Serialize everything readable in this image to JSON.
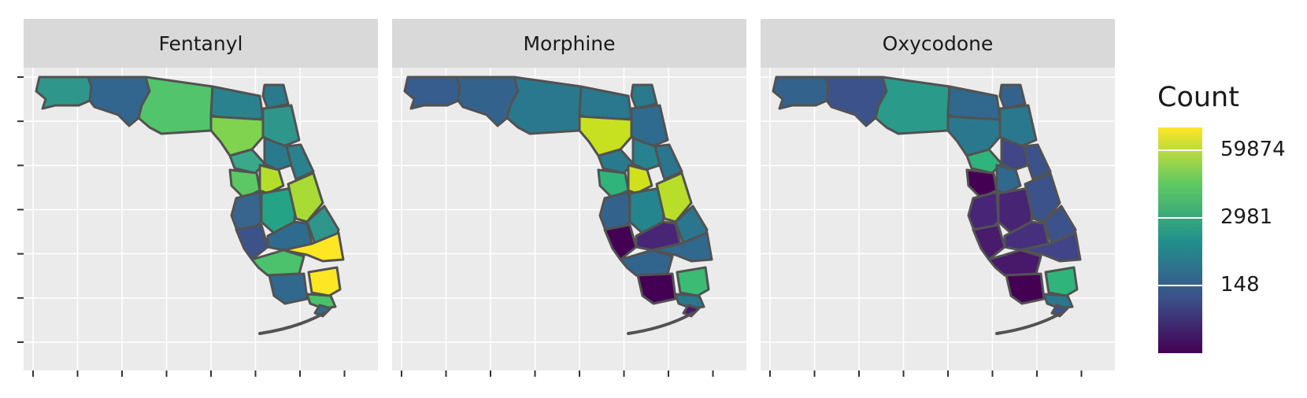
{
  "panels": [
    {
      "title": "Fentanyl",
      "fills": {
        "escambia": "#2f968c",
        "panhandle_mid": "#32668e",
        "big_bend": "#52c46b",
        "north_central": "#2a828e",
        "jax": "#2f968c",
        "nassau": "#2a7a8e",
        "gainesville": "#7fd34e",
        "lake_city": "#3aa98a",
        "marion": "#2a7a8e",
        "volusia": "#2a828e",
        "nature_coast": "#5cc863",
        "tampa": "#37658e",
        "orlando": "#b5de2b",
        "central": "#24a387",
        "brevard": "#a8db34",
        "indian_river": "#2f968c",
        "sarasota": "#3b528b",
        "heartland": "#2f6b8e",
        "palm_beach": "#fde725",
        "ft_myers": "#4cc26c",
        "collier": "#31688e",
        "broward": "#fde725",
        "miami": "#4ac16d",
        "keys": "#2f6b8e"
      }
    },
    {
      "title": "Morphine",
      "fills": {
        "escambia": "#365d8d",
        "panhandle_mid": "#33638d",
        "big_bend": "#2a788e",
        "north_central": "#2a788e",
        "jax": "#2f6b8e",
        "nassau": "#2a7a8e",
        "gainesville": "#c7e020",
        "lake_city": "#2a7a8e",
        "marion": "#26828e",
        "volusia": "#2a768e",
        "nature_coast": "#2fb47c",
        "tampa": "#33638d",
        "orlando": "#d0e11c",
        "central": "#25858e",
        "brevard": "#b8de29",
        "indian_river": "#2a768e",
        "sarasota": "#440154",
        "heartland": "#482576",
        "palm_beach": "#31688e",
        "ft_myers": "#32658e",
        "collier": "#440154",
        "broward": "#3cbb75",
        "miami": "#2a788e",
        "keys": "#481b6d"
      }
    },
    {
      "title": "Oxycodone",
      "fills": {
        "escambia": "#33638d",
        "panhandle_mid": "#3b528b",
        "big_bend": "#2a9b8a",
        "north_central": "#31688e",
        "jax": "#2a788e",
        "nassau": "#33638d",
        "gainesville": "#2a788e",
        "lake_city": "#2fb47c",
        "marion": "#404688",
        "volusia": "#3b528b",
        "nature_coast": "#440154",
        "tampa": "#482576",
        "orlando": "#31688e",
        "central": "#482475",
        "brevard": "#3b528b",
        "indian_river": "#3b528b",
        "sarasota": "#481b6d",
        "heartland": "#46307e",
        "palm_beach": "#414487",
        "ft_myers": "#48186a",
        "collier": "#440154",
        "broward": "#2fb47c",
        "miami": "#2a788e",
        "keys": "#3b528b"
      }
    }
  ],
  "legend": {
    "title": "Count",
    "labels": [
      {
        "text": "59874",
        "fraction": 0.9
      },
      {
        "text": "2981",
        "fraction": 0.6
      },
      {
        "text": "148",
        "fraction": 0.3
      }
    ],
    "colors": [
      "#440154",
      "#3b528b",
      "#21918c",
      "#5ec962",
      "#fde725"
    ]
  },
  "outline_color": "#525252"
}
